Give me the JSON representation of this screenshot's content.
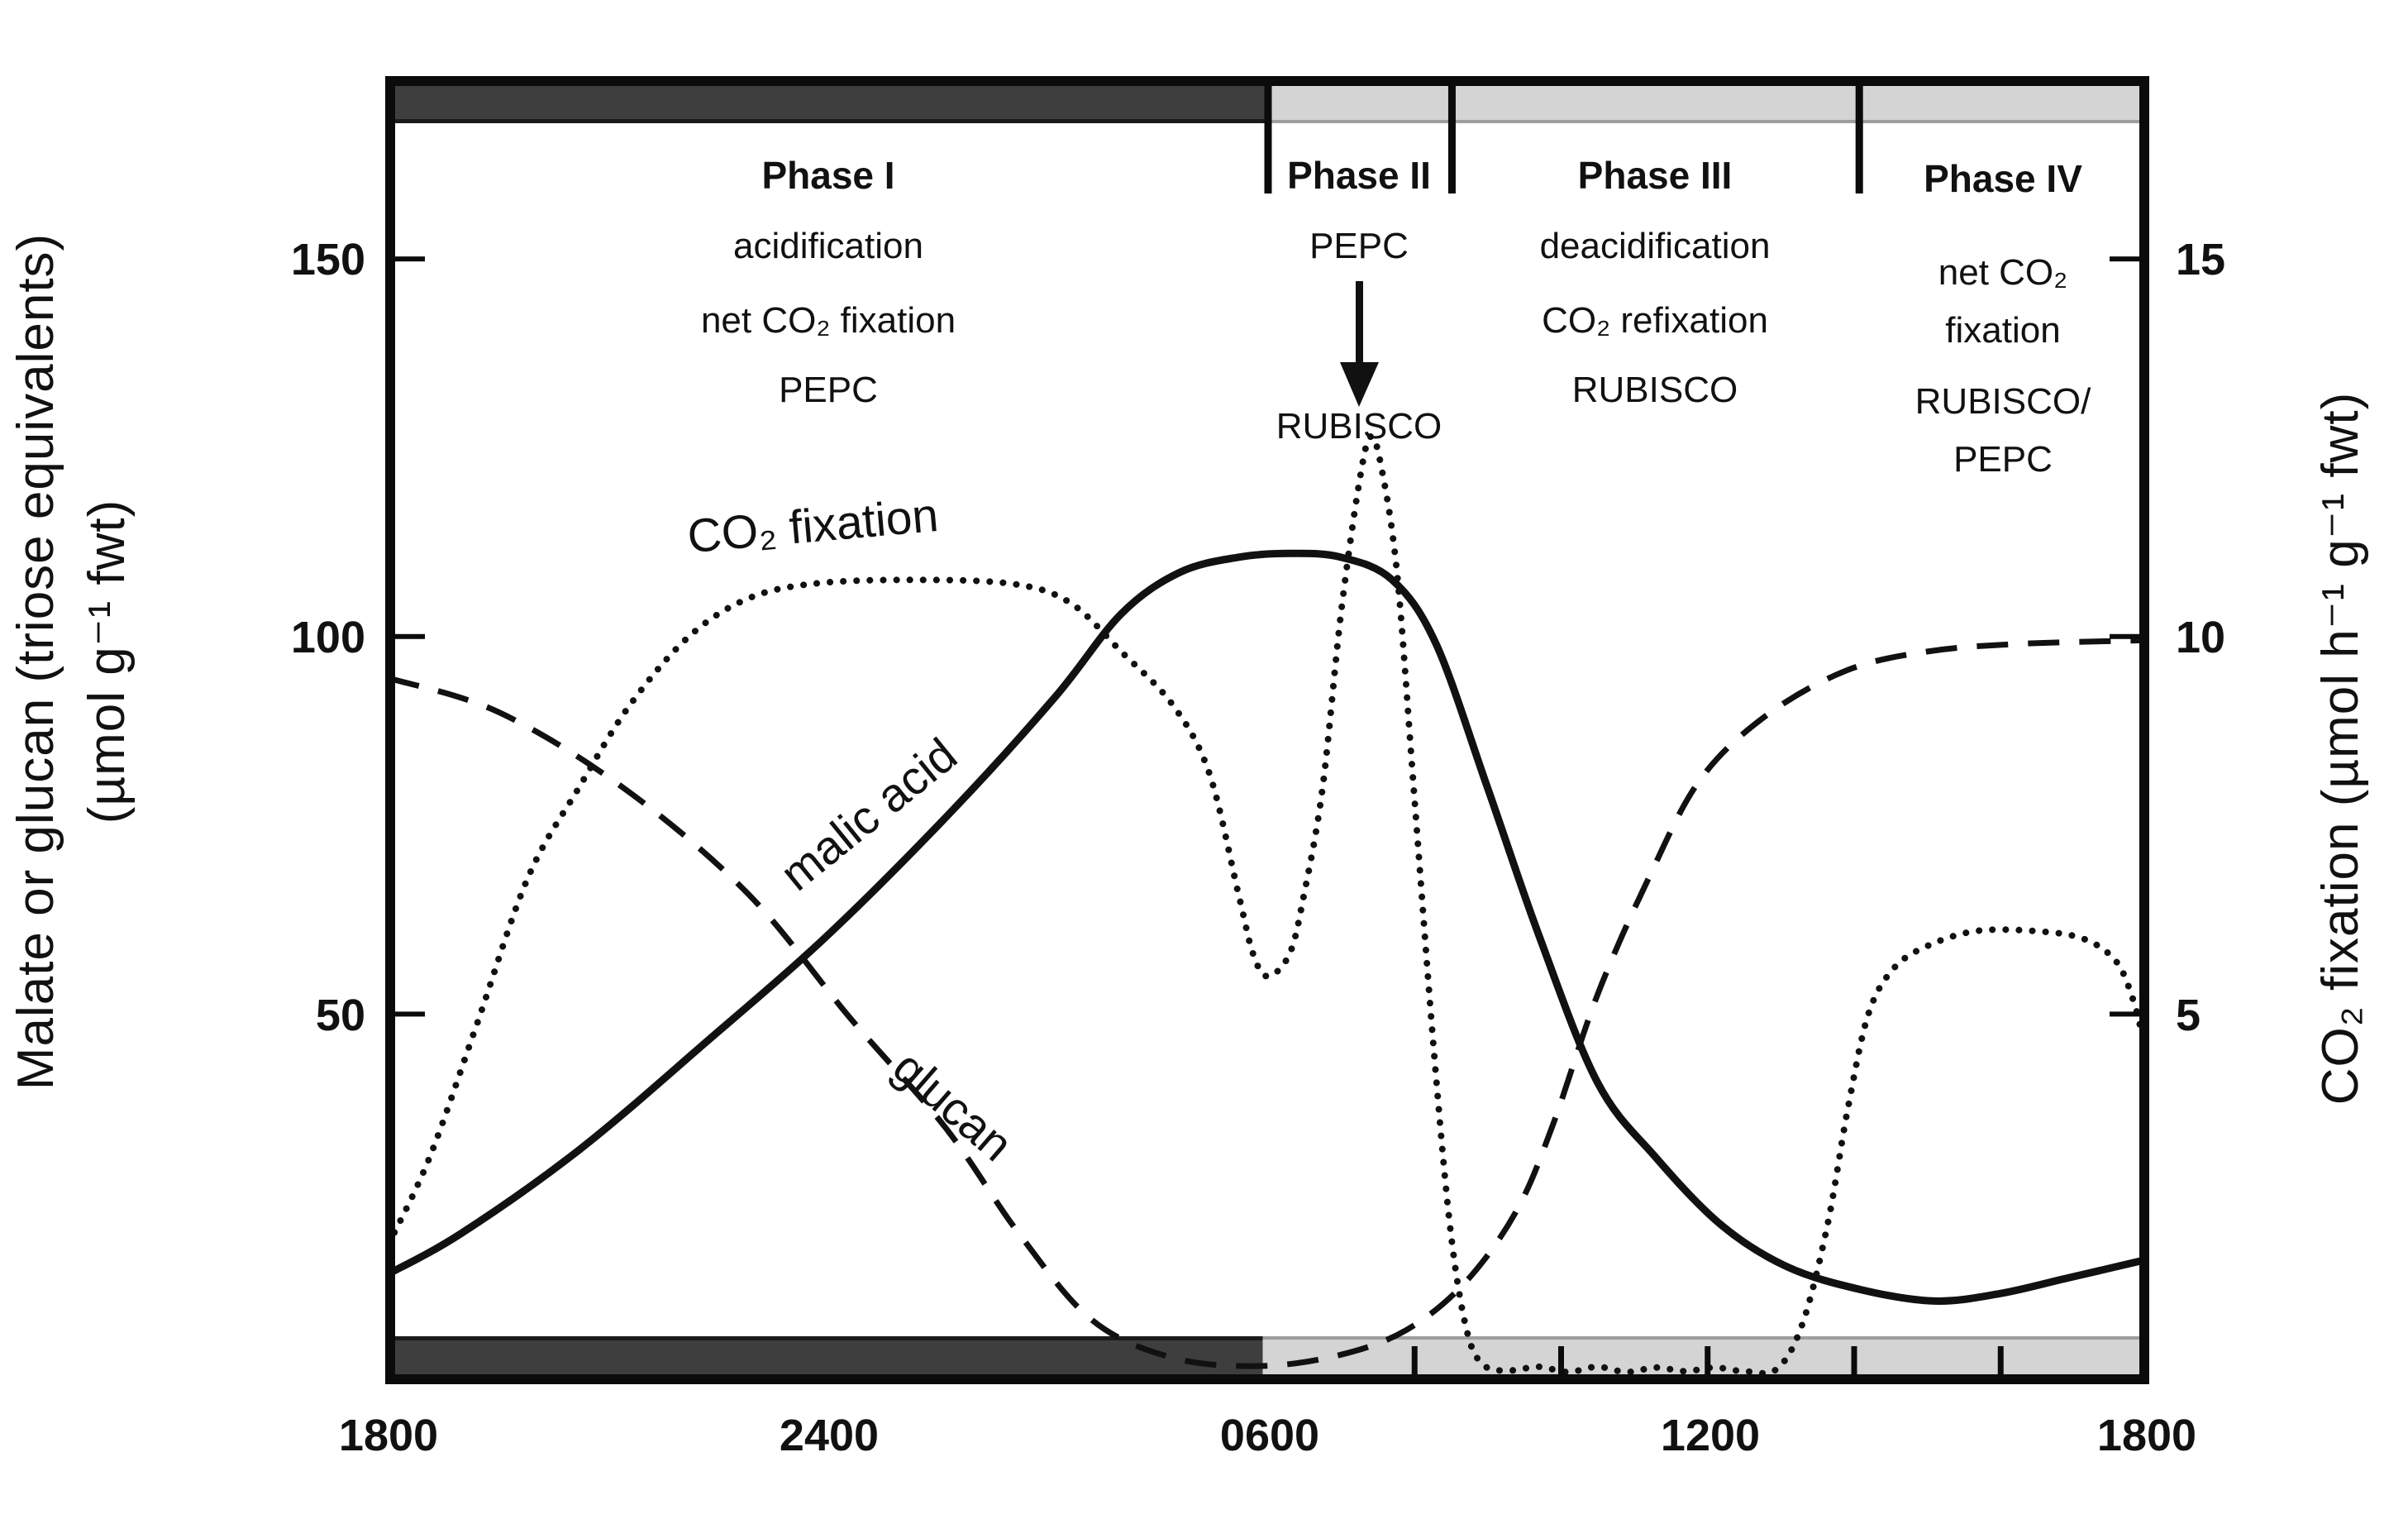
{
  "figure": {
    "left_axis": {
      "title_line1": "Malate or glucan (triose equivalents)",
      "title_line2": "(µmol g⁻¹ fwt)",
      "ticks": [
        "150",
        "100",
        "50"
      ]
    },
    "right_axis": {
      "title": "CO₂ fixation  (µmol  h⁻¹ g⁻¹ fwt)",
      "ticks": [
        "15",
        "10",
        "5"
      ]
    },
    "x_axis": {
      "ticks": [
        "1800",
        "2400",
        "0600",
        "1200",
        "1800"
      ]
    },
    "phases": [
      {
        "label": "Phase I",
        "lines": [
          "acidification",
          "net CO₂ fixation",
          "PEPC"
        ]
      },
      {
        "label": "Phase II",
        "lines": [
          "PEPC",
          "RUBISCO"
        ]
      },
      {
        "label": "Phase III",
        "lines": [
          "deacidification",
          "CO₂ refixation",
          "RUBISCO"
        ]
      },
      {
        "label": "Phase IV",
        "lines": [
          "net CO₂",
          "fixation",
          "RUBISCO/",
          "PEPC"
        ]
      }
    ],
    "curve_labels": {
      "co2": "CO₂ fixation",
      "malic": "malic acid",
      "glucan": "glucan"
    },
    "colors": {
      "night_bar": "#3e3e3e",
      "day_bar": "#d4d4d4",
      "day_bar_edge": "#9e9e9e",
      "line": "#111111"
    }
  },
  "chart_data": {
    "type": "line",
    "title": "",
    "xlabel": "",
    "ylabel_left": "Malate or glucan (triose equivalents) (µmol g⁻¹ fwt)",
    "ylabel_right": "CO₂ fixation (µmol h⁻¹ g⁻¹ fwt)",
    "x_unit": "hours after 1800",
    "xlim": [
      0,
      24
    ],
    "ylim_left": [
      0,
      174
    ],
    "ylim_right": [
      0,
      17.4
    ],
    "grid": false,
    "legend_position": "inline-labels",
    "x_ticks": [
      {
        "t": 0,
        "label": "1800"
      },
      {
        "t": 6,
        "label": "2400"
      },
      {
        "t": 12,
        "label": "0600"
      },
      {
        "t": 18,
        "label": "1200"
      },
      {
        "t": 24,
        "label": "1800"
      }
    ],
    "x_minor_ticks": [
      14,
      16,
      18,
      20,
      22
    ],
    "y_ticks_left": [
      150,
      100,
      50
    ],
    "y_ticks_right": [
      15,
      10,
      5
    ],
    "night_span": [
      0,
      12
    ],
    "day_span": [
      12,
      24
    ],
    "phase_boundaries": [
      12,
      14.51,
      20.07
    ],
    "series": [
      {
        "name": "malic acid",
        "style": "solid",
        "axis": "left",
        "points": [
          [
            0,
            15.6
          ],
          [
            1.0,
            21
          ],
          [
            2.6,
            32
          ],
          [
            4.3,
            46
          ],
          [
            6.0,
            60.5
          ],
          [
            7.7,
            77
          ],
          [
            9.1,
            92
          ],
          [
            10.0,
            103
          ],
          [
            10.8,
            108.5
          ],
          [
            11.6,
            110.5
          ],
          [
            12.3,
            111
          ],
          [
            13.0,
            110.5
          ],
          [
            13.7,
            107.5
          ],
          [
            14.3,
            99
          ],
          [
            15.0,
            80
          ],
          [
            15.7,
            60.5
          ],
          [
            16.5,
            41
          ],
          [
            17.3,
            31
          ],
          [
            18.2,
            22
          ],
          [
            19.1,
            16.5
          ],
          [
            20.1,
            13.5
          ],
          [
            21.1,
            12
          ],
          [
            22.0,
            13
          ],
          [
            22.9,
            15
          ],
          [
            24,
            17.5
          ]
        ]
      },
      {
        "name": "glucan",
        "style": "dashed",
        "axis": "left",
        "points": [
          [
            0,
            94.5
          ],
          [
            1.5,
            90
          ],
          [
            3.2,
            80
          ],
          [
            4.9,
            66
          ],
          [
            6.3,
            49.5
          ],
          [
            7.6,
            35
          ],
          [
            8.6,
            21
          ],
          [
            9.6,
            9.5
          ],
          [
            10.7,
            4.5
          ],
          [
            11.9,
            3.4
          ],
          [
            13.0,
            4.9
          ],
          [
            13.9,
            8.2
          ],
          [
            14.7,
            14.5
          ],
          [
            15.4,
            24
          ],
          [
            15.9,
            35.5
          ],
          [
            16.5,
            52.5
          ],
          [
            17.2,
            68
          ],
          [
            17.9,
            81
          ],
          [
            18.8,
            89.5
          ],
          [
            19.9,
            95.5
          ],
          [
            21.0,
            98
          ],
          [
            22.2,
            99
          ],
          [
            24,
            99.5
          ]
        ]
      },
      {
        "name": "CO₂ fixation",
        "style": "dotted",
        "axis": "right",
        "points": [
          [
            0,
            1.95
          ],
          [
            0.56,
            3.1
          ],
          [
            1.2,
            4.85
          ],
          [
            1.9,
            6.8
          ],
          [
            2.6,
            8.0
          ],
          [
            3.3,
            9.1
          ],
          [
            4.1,
            10.0
          ],
          [
            4.9,
            10.5
          ],
          [
            5.8,
            10.7
          ],
          [
            7.1,
            10.75
          ],
          [
            8.5,
            10.7
          ],
          [
            9.3,
            10.45
          ],
          [
            10.0,
            9.8
          ],
          [
            10.7,
            9.1
          ],
          [
            11.2,
            8.2
          ],
          [
            11.6,
            6.6
          ],
          [
            11.8,
            5.8
          ],
          [
            12.0,
            5.5
          ],
          [
            12.3,
            5.8
          ],
          [
            12.5,
            6.6
          ],
          [
            12.75,
            8.0
          ],
          [
            13.0,
            10.3
          ],
          [
            13.26,
            12.1
          ],
          [
            13.41,
            12.65
          ],
          [
            13.56,
            12.2
          ],
          [
            13.77,
            10.8
          ],
          [
            14.0,
            7.9
          ],
          [
            14.27,
            4.5
          ],
          [
            14.5,
            2.1
          ],
          [
            14.72,
            0.8
          ],
          [
            14.95,
            0.35
          ],
          [
            15.3,
            0.28
          ],
          [
            15.7,
            0.33
          ],
          [
            16.1,
            0.26
          ],
          [
            16.5,
            0.33
          ],
          [
            16.9,
            0.26
          ],
          [
            17.3,
            0.32
          ],
          [
            17.7,
            0.27
          ],
          [
            18.1,
            0.32
          ],
          [
            18.5,
            0.27
          ],
          [
            18.95,
            0.3
          ],
          [
            19.3,
            0.9
          ],
          [
            19.64,
            2.2
          ],
          [
            19.92,
            3.75
          ],
          [
            20.2,
            5.0
          ],
          [
            20.54,
            5.6
          ],
          [
            21.0,
            5.9
          ],
          [
            21.67,
            6.1
          ],
          [
            22.46,
            6.1
          ],
          [
            23.13,
            6.0
          ],
          [
            23.58,
            5.7
          ],
          [
            23.81,
            5.2
          ],
          [
            23.92,
            4.8
          ]
        ]
      }
    ]
  }
}
